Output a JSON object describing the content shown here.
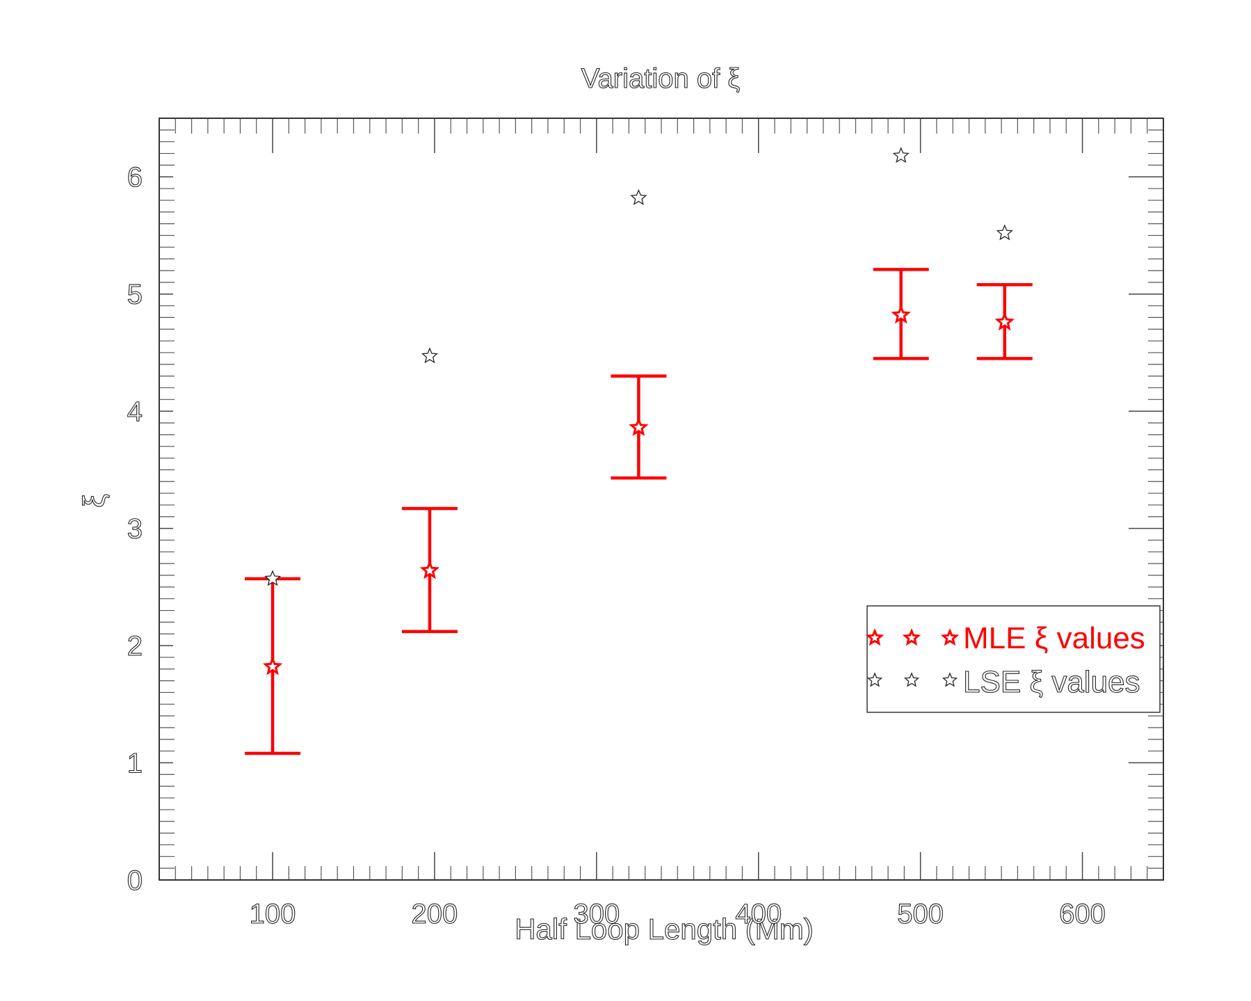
{
  "chart_data": {
    "type": "scatter",
    "title": "Variation of ξ",
    "xlabel": "Half Loop Length (Mm)",
    "ylabel": "ξ",
    "xlim": [
      30,
      650
    ],
    "ylim": [
      0,
      6.5
    ],
    "xticks": [
      100,
      200,
      300,
      400,
      500,
      600
    ],
    "yticks": [
      0,
      1,
      2,
      3,
      4,
      5,
      6
    ],
    "legend_position": "right",
    "series": [
      {
        "name": "MLE ξ values",
        "color": "#ff0000",
        "marker": "star",
        "points": [
          {
            "x": 100,
            "y": 1.82,
            "ylow": 1.08,
            "yhigh": 2.57
          },
          {
            "x": 197,
            "y": 2.64,
            "ylow": 2.12,
            "yhigh": 3.17
          },
          {
            "x": 326,
            "y": 3.86,
            "ylow": 3.43,
            "yhigh": 4.3
          },
          {
            "x": 488,
            "y": 4.82,
            "ylow": 4.45,
            "yhigh": 5.21
          },
          {
            "x": 552,
            "y": 4.76,
            "ylow": 4.45,
            "yhigh": 5.08
          }
        ]
      },
      {
        "name": "LSE ξ values",
        "color": "#222222",
        "marker": "star-outline",
        "points": [
          {
            "x": 100,
            "y": 2.57
          },
          {
            "x": 197,
            "y": 4.47
          },
          {
            "x": 326,
            "y": 5.82
          },
          {
            "x": 488,
            "y": 6.18
          },
          {
            "x": 552,
            "y": 5.52
          }
        ]
      }
    ]
  }
}
